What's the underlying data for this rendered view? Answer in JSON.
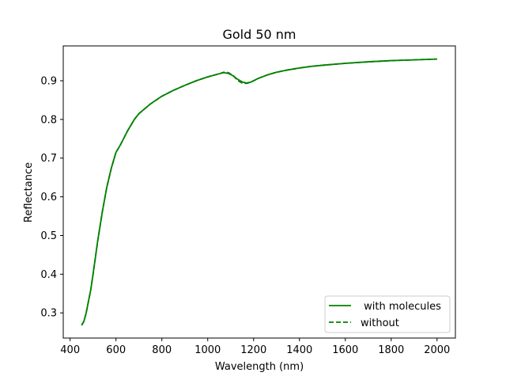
{
  "chart_data": {
    "type": "line",
    "title": "Gold 50 nm",
    "xlabel": "Wavelength (nm)",
    "ylabel": "Reflectance",
    "xlim": [
      370,
      2080
    ],
    "ylim": [
      0.235,
      0.99
    ],
    "xticks": [
      400,
      600,
      800,
      1000,
      1200,
      1400,
      1600,
      1800,
      2000
    ],
    "yticks": [
      0.3,
      0.4,
      0.5,
      0.6,
      0.7,
      0.8,
      0.9
    ],
    "grid": false,
    "legend_position": "lower-right",
    "colors": {
      "series": "#008000",
      "axes": "#000000",
      "legend_border": "#cccccc"
    },
    "series": [
      {
        "name": " with molecules",
        "linestyle": "solid",
        "x": [
          450,
          460,
          470,
          480,
          490,
          500,
          520,
          540,
          560,
          580,
          600,
          620,
          650,
          680,
          700,
          750,
          800,
          850,
          900,
          950,
          1000,
          1050,
          1070,
          1090,
          1110,
          1130,
          1150,
          1170,
          1190,
          1220,
          1260,
          1300,
          1350,
          1400,
          1450,
          1500,
          1600,
          1700,
          1800,
          1900,
          2000
        ],
        "y": [
          0.268,
          0.278,
          0.3,
          0.33,
          0.36,
          0.4,
          0.485,
          0.56,
          0.625,
          0.675,
          0.715,
          0.735,
          0.77,
          0.8,
          0.815,
          0.84,
          0.86,
          0.875,
          0.888,
          0.9,
          0.91,
          0.918,
          0.921,
          0.919,
          0.913,
          0.904,
          0.897,
          0.894,
          0.897,
          0.906,
          0.915,
          0.922,
          0.928,
          0.933,
          0.937,
          0.94,
          0.945,
          0.949,
          0.952,
          0.954,
          0.956
        ]
      },
      {
        "name": "without",
        "linestyle": "dashed",
        "x": [
          450,
          460,
          470,
          480,
          490,
          500,
          520,
          540,
          560,
          580,
          600,
          620,
          650,
          680,
          700,
          750,
          800,
          850,
          900,
          950,
          1000,
          1050,
          1070,
          1090,
          1110,
          1130,
          1150,
          1170,
          1190,
          1220,
          1260,
          1300,
          1350,
          1400,
          1450,
          1500,
          1600,
          1700,
          1800,
          1900,
          2000
        ],
        "y": [
          0.268,
          0.278,
          0.3,
          0.33,
          0.36,
          0.4,
          0.485,
          0.56,
          0.625,
          0.675,
          0.715,
          0.735,
          0.77,
          0.8,
          0.815,
          0.84,
          0.86,
          0.875,
          0.888,
          0.9,
          0.91,
          0.918,
          0.922,
          0.921,
          0.914,
          0.901,
          0.894,
          0.893,
          0.897,
          0.906,
          0.915,
          0.922,
          0.928,
          0.933,
          0.937,
          0.94,
          0.945,
          0.949,
          0.952,
          0.954,
          0.956
        ]
      }
    ]
  }
}
